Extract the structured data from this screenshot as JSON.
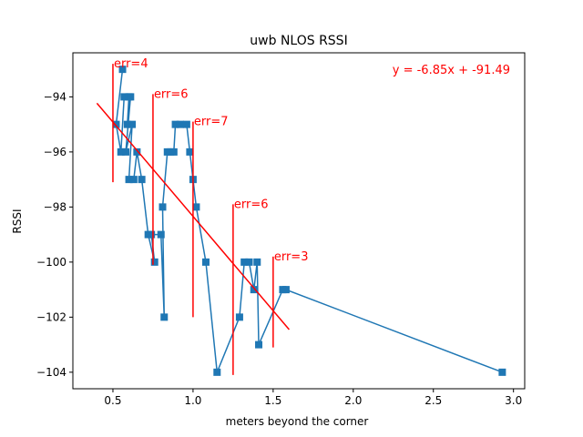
{
  "chart_data": {
    "type": "line",
    "title": "uwb NLOS RSSI",
    "xlabel": "meters beyond the corner",
    "ylabel": "RSSI",
    "xlim": [
      0.25,
      3.07
    ],
    "ylim": [
      -104.6,
      -92.4
    ],
    "xticks": [
      0.5,
      1.0,
      1.5,
      2.0,
      2.5,
      3.0
    ],
    "xtick_labels": [
      "0.5",
      "1.0",
      "1.5",
      "2.0",
      "2.5",
      "3.0"
    ],
    "yticks": [
      -94,
      -96,
      -98,
      -100,
      -102,
      -104
    ],
    "ytick_labels": [
      "−94",
      "−96",
      "−98",
      "−100",
      "−102",
      "−104"
    ],
    "grid": false,
    "colors": {
      "series": "#1f77b4",
      "fit": "#ff0000",
      "annotation": "#ff0000"
    },
    "series": [
      {
        "marker": "square",
        "x": [
          0.56,
          0.52,
          0.55,
          0.57,
          0.6,
          0.59,
          0.61,
          0.58,
          0.62,
          0.6,
          0.63,
          0.65,
          0.68,
          0.72,
          0.76,
          0.74,
          0.8,
          0.82,
          0.81,
          0.84,
          0.86,
          0.88,
          0.89,
          0.92,
          0.96,
          0.98,
          1.0,
          1.02,
          1.08,
          1.15,
          1.29,
          1.32,
          1.35,
          1.38,
          1.4,
          1.41,
          1.56,
          1.58,
          2.93
        ],
        "y": [
          -93,
          -95,
          -96,
          -94,
          -94,
          -95,
          -94,
          -96,
          -95,
          -97,
          -97,
          -96,
          -97,
          -99,
          -100,
          -99,
          -99,
          -102,
          -98,
          -96,
          -96,
          -96,
          -95,
          -95,
          -95,
          -96,
          -97,
          -98,
          -100,
          -104,
          -102,
          -100,
          -100,
          -101,
          -100,
          -103,
          -101,
          -101,
          -104
        ]
      }
    ],
    "fit_line": {
      "label": "y = -6.85x + -91.49",
      "slope": -6.85,
      "intercept": -91.49,
      "x_range": [
        0.4,
        1.6
      ]
    },
    "error_bars": [
      {
        "x": 0.5,
        "y_top": -92.8,
        "y_bottom": -97.1,
        "label": "err=4"
      },
      {
        "x": 0.75,
        "y_top": -93.9,
        "y_bottom": -100.1,
        "label": "err=6"
      },
      {
        "x": 1.0,
        "y_top": -94.9,
        "y_bottom": -102.0,
        "label": "err=7"
      },
      {
        "x": 1.25,
        "y_top": -97.9,
        "y_bottom": -104.1,
        "label": "err=6"
      },
      {
        "x": 1.5,
        "y_top": -99.8,
        "y_bottom": -103.1,
        "label": "err=3"
      }
    ]
  }
}
